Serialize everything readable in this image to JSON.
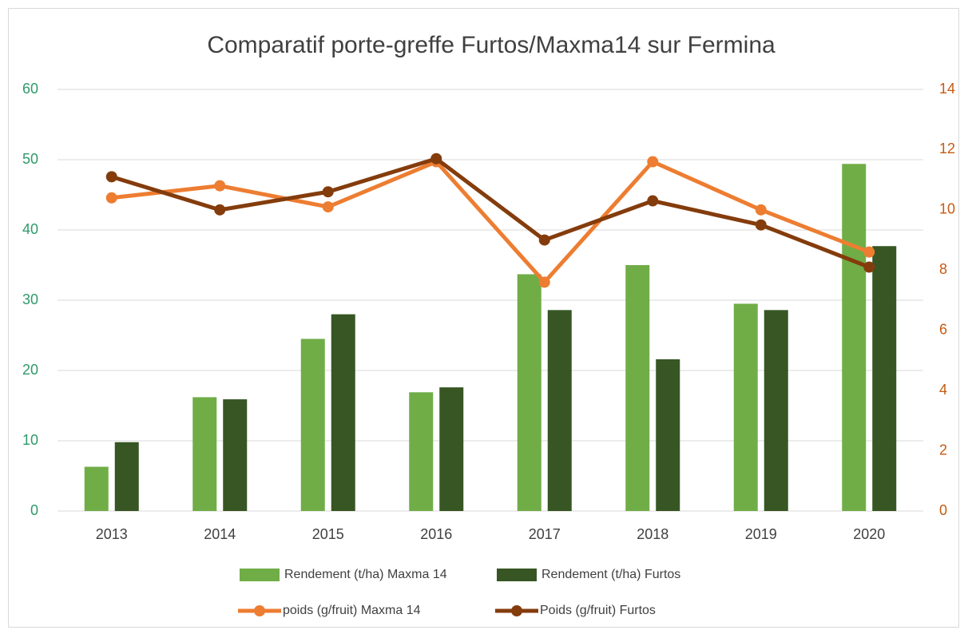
{
  "chart_data": {
    "type": "bar_line",
    "title": "Comparatif porte-greffe Furtos/Maxma14 sur Fermina",
    "categories": [
      "2013",
      "2014",
      "2015",
      "2016",
      "2017",
      "2018",
      "2019",
      "2020"
    ],
    "series": [
      {
        "name": "Rendement (t/ha) Maxma 14",
        "type": "bar",
        "color": "#70ad47",
        "values": [
          6.3,
          16.2,
          24.5,
          16.9,
          33.7,
          35.0,
          29.5,
          49.4
        ]
      },
      {
        "name": "Rendement (t/ha) Furtos",
        "type": "bar",
        "color": "#375623",
        "values": [
          9.8,
          15.9,
          28.0,
          17.6,
          28.6,
          21.6,
          28.6,
          37.7
        ]
      },
      {
        "name": "poids (g/fruit) Maxma 14",
        "type": "line",
        "axis": "y2",
        "color": "#ed7d31",
        "values": [
          10.4,
          10.8,
          10.1,
          11.6,
          7.6,
          11.6,
          10.0,
          8.6
        ]
      },
      {
        "name": "Poids (g/fruit) Furtos",
        "type": "line",
        "axis": "y2",
        "color": "#843c0c",
        "values": [
          11.1,
          10.0,
          10.6,
          11.7,
          9.0,
          10.3,
          9.5,
          8.1
        ]
      }
    ],
    "ylim": [
      0,
      60
    ],
    "yticks": [
      0,
      10,
      20,
      30,
      40,
      50,
      60
    ],
    "y2lim": [
      0,
      14
    ],
    "y2ticks": [
      0,
      2,
      4,
      6,
      8,
      10,
      12,
      14
    ],
    "grid": true,
    "legend": "bottom"
  }
}
